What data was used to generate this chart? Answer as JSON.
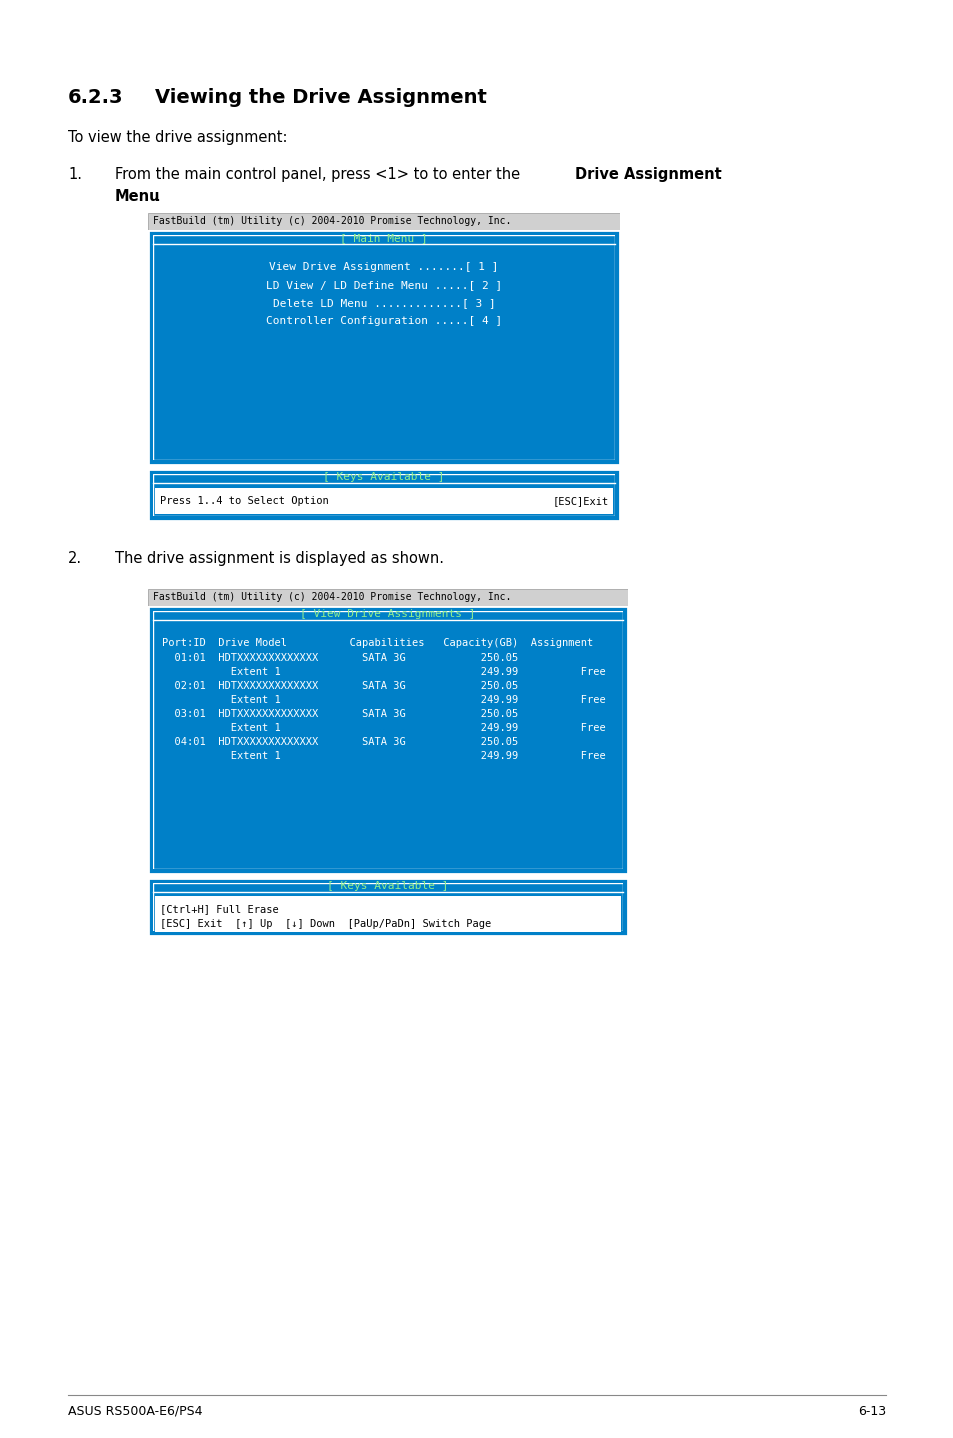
{
  "title_num": "6.2.3",
  "title_text": "Viewing the Drive Assignment",
  "intro": "To view the drive assignment:",
  "step1_normal": "From the main control panel, press <1> to to enter the ",
  "step1_bold": "Drive Assignment",
  "step1_bold2": "Menu",
  "step2_text": "The drive assignment is displayed as shown.",
  "footer_left": "ASUS RS500A-E6/PS4",
  "footer_right": "6-13",
  "screen1_header": "FastBuild (tm) Utility (c) 2004-2010 Promise Technology, Inc.",
  "screen1_title": "[ Main Menu ]",
  "screen1_content": [
    "View Drive Assignment .......[ 1 ]",
    "LD View / LD Define Menu .....[ 2 ]",
    "Delete LD Menu .............[ 3 ]",
    "Controller Configuration .....[ 4 ]"
  ],
  "screen1_keys_title": "[ Keys Available ]",
  "screen1_keys_left": "Press 1..4 to Select Option",
  "screen1_keys_right": "[ESC]Exit",
  "screen2_header": "FastBuild (tm) Utility (c) 2004-2010 Promise Technology, Inc.",
  "screen2_title": "[ View Drive Assignments ]",
  "screen2_col_header": "Port:ID  Drive Model          Capabilities   Capacity(GB)  Assignment",
  "screen2_rows": [
    "  01:01  HDTXXXXXXXXXXXXX       SATA 3G            250.05",
    "           Extent 1                                249.99          Free",
    "  02:01  HDTXXXXXXXXXXXXX       SATA 3G            250.05",
    "           Extent 1                                249.99          Free",
    "  03:01  HDTXXXXXXXXXXXXX       SATA 3G            250.05",
    "           Extent 1                                249.99          Free",
    "  04:01  HDTXXXXXXXXXXXXX       SATA 3G            250.05",
    "           Extent 1                                249.99          Free"
  ],
  "screen2_keys_title": "[ Keys Available ]",
  "screen2_keys_line1": "[Ctrl+H] Full Erase",
  "screen2_keys_line2": "[ESC] Exit  [↑] Up  [↓] Down  [PaUp/PaDn] Switch Page",
  "bg_blue": "#0080c8",
  "title_green": "#90ee90",
  "header_gray": "#d0d0d0"
}
